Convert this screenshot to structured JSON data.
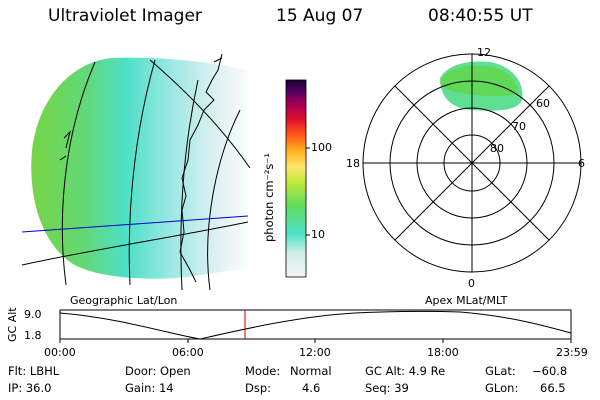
{
  "header": {
    "instrument": "Ultraviolet Imager",
    "date": "15 Aug 07",
    "time": "08:40:55 UT"
  },
  "colorbar": {
    "label": "photon cm⁻²s⁻¹",
    "ticks": [
      "100",
      "10"
    ]
  },
  "geo_panel": {
    "caption": "Geographic Lat/Lon"
  },
  "polar_panel": {
    "caption": "Apex MLat/MLT",
    "mlt_labels": {
      "top": "12",
      "left": "18",
      "right": "6",
      "bottom": "0"
    },
    "lat_labels": [
      "60",
      "70",
      "80"
    ]
  },
  "altitude_plot": {
    "ylabel": "GC Alt",
    "yticks": [
      "9.0",
      "1.8"
    ],
    "xticks": [
      "00:00",
      "06:00",
      "12:00",
      "18:00",
      "23:59"
    ],
    "marker_hour": 8.68
  },
  "status": {
    "flt": "Flt: LBHL",
    "door": "Door: Open",
    "mode_label": "Mode:",
    "mode_value": "Normal",
    "gc_alt": "GC Alt: 4.9 Re",
    "glat_label": "GLat:",
    "glat_value": "−60.8",
    "ip": "IP: 36.0",
    "gain": "Gain: 14",
    "dsp_label": "Dsp:",
    "dsp_value": "4.6",
    "seq": "Seq: 39",
    "glon_label": "GLon:",
    "glon_value": "66.5"
  },
  "colors": {
    "map_lines": "#000000",
    "track_line": "#0000cc",
    "marker": "#cc0000"
  }
}
